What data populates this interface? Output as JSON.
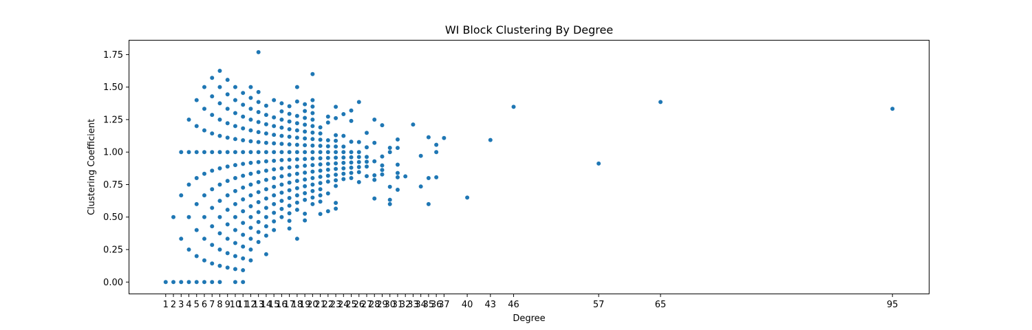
{
  "chart_data": {
    "type": "scatter",
    "title": "WI Block Clustering By Degree",
    "xlabel": "Degree",
    "ylabel": "Clustering Coefficient",
    "xlim": [
      -3.7,
      99.7
    ],
    "ylim": [
      -0.0885,
      1.858
    ],
    "grid": false,
    "color": "#1f77b4",
    "xticks": [
      1,
      2,
      3,
      4,
      5,
      6,
      7,
      8,
      9,
      10,
      11,
      12,
      13,
      14,
      15,
      16,
      17,
      18,
      19,
      20,
      21,
      22,
      23,
      24,
      25,
      26,
      27,
      28,
      29,
      30,
      31,
      32,
      33,
      34,
      35,
      36,
      37,
      40,
      43,
      46,
      57,
      65,
      95
    ],
    "yticks": [
      0.0,
      0.25,
      0.5,
      0.75,
      1.0,
      1.25,
      1.5,
      1.75
    ],
    "ytick_labels": [
      "0.00",
      "0.25",
      "0.50",
      "0.75",
      "1.00",
      "1.25",
      "1.50",
      "1.75"
    ],
    "points": [
      [
        1,
        0.0
      ],
      [
        2,
        0.0
      ],
      [
        2,
        0.5
      ],
      [
        3,
        0.0
      ],
      [
        3,
        0.333
      ],
      [
        3,
        0.667
      ],
      [
        3,
        1.0
      ],
      [
        4,
        0.0
      ],
      [
        4,
        0.25
      ],
      [
        4,
        0.5
      ],
      [
        4,
        0.75
      ],
      [
        4,
        1.0
      ],
      [
        4,
        1.25
      ],
      [
        5,
        0.0
      ],
      [
        5,
        0.2
      ],
      [
        5,
        0.4
      ],
      [
        5,
        0.6
      ],
      [
        5,
        0.8
      ],
      [
        5,
        1.0
      ],
      [
        5,
        1.2
      ],
      [
        5,
        1.4
      ],
      [
        6,
        0.0
      ],
      [
        6,
        0.167
      ],
      [
        6,
        0.333
      ],
      [
        6,
        0.5
      ],
      [
        6,
        0.667
      ],
      [
        6,
        0.833
      ],
      [
        6,
        1.0
      ],
      [
        6,
        1.167
      ],
      [
        6,
        1.333
      ],
      [
        6,
        1.5
      ],
      [
        7,
        0.0
      ],
      [
        7,
        0.143
      ],
      [
        7,
        0.286
      ],
      [
        7,
        0.429
      ],
      [
        7,
        0.571
      ],
      [
        7,
        0.714
      ],
      [
        7,
        0.857
      ],
      [
        7,
        1.0
      ],
      [
        7,
        1.143
      ],
      [
        7,
        1.286
      ],
      [
        7,
        1.429
      ],
      [
        7,
        1.571
      ],
      [
        8,
        0.0
      ],
      [
        8,
        0.125
      ],
      [
        8,
        0.25
      ],
      [
        8,
        0.375
      ],
      [
        8,
        0.5
      ],
      [
        8,
        0.625
      ],
      [
        8,
        0.75
      ],
      [
        8,
        0.875
      ],
      [
        8,
        1.0
      ],
      [
        8,
        1.125
      ],
      [
        8,
        1.25
      ],
      [
        8,
        1.375
      ],
      [
        8,
        1.5
      ],
      [
        8,
        1.625
      ],
      [
        9,
        0.111
      ],
      [
        9,
        0.222
      ],
      [
        9,
        0.333
      ],
      [
        9,
        0.444
      ],
      [
        9,
        0.556
      ],
      [
        9,
        0.667
      ],
      [
        9,
        0.778
      ],
      [
        9,
        0.889
      ],
      [
        9,
        1.0
      ],
      [
        9,
        1.111
      ],
      [
        9,
        1.222
      ],
      [
        9,
        1.333
      ],
      [
        9,
        1.444
      ],
      [
        9,
        1.556
      ],
      [
        10,
        0.0
      ],
      [
        10,
        0.1
      ],
      [
        10,
        0.2
      ],
      [
        10,
        0.3
      ],
      [
        10,
        0.4
      ],
      [
        10,
        0.5
      ],
      [
        10,
        0.6
      ],
      [
        10,
        0.7
      ],
      [
        10,
        0.8
      ],
      [
        10,
        0.9
      ],
      [
        10,
        1.0
      ],
      [
        10,
        1.1
      ],
      [
        10,
        1.2
      ],
      [
        10,
        1.3
      ],
      [
        10,
        1.4
      ],
      [
        10,
        1.5
      ],
      [
        11,
        0.0
      ],
      [
        11,
        0.091
      ],
      [
        11,
        0.182
      ],
      [
        11,
        0.273
      ],
      [
        11,
        0.364
      ],
      [
        11,
        0.455
      ],
      [
        11,
        0.545
      ],
      [
        11,
        0.636
      ],
      [
        11,
        0.727
      ],
      [
        11,
        0.818
      ],
      [
        11,
        0.909
      ],
      [
        11,
        1.0
      ],
      [
        11,
        1.091
      ],
      [
        11,
        1.182
      ],
      [
        11,
        1.273
      ],
      [
        11,
        1.364
      ],
      [
        11,
        1.455
      ],
      [
        12,
        0.167
      ],
      [
        12,
        0.25
      ],
      [
        12,
        0.333
      ],
      [
        12,
        0.417
      ],
      [
        12,
        0.5
      ],
      [
        12,
        0.583
      ],
      [
        12,
        0.667
      ],
      [
        12,
        0.75
      ],
      [
        12,
        0.833
      ],
      [
        12,
        0.917
      ],
      [
        12,
        1.0
      ],
      [
        12,
        1.083
      ],
      [
        12,
        1.167
      ],
      [
        12,
        1.25
      ],
      [
        12,
        1.333
      ],
      [
        12,
        1.417
      ],
      [
        12,
        1.5
      ],
      [
        13,
        0.308
      ],
      [
        13,
        0.385
      ],
      [
        13,
        0.462
      ],
      [
        13,
        0.538
      ],
      [
        13,
        0.615
      ],
      [
        13,
        0.692
      ],
      [
        13,
        0.769
      ],
      [
        13,
        0.846
      ],
      [
        13,
        0.923
      ],
      [
        13,
        1.0
      ],
      [
        13,
        1.077
      ],
      [
        13,
        1.154
      ],
      [
        13,
        1.231
      ],
      [
        13,
        1.308
      ],
      [
        13,
        1.385
      ],
      [
        13,
        1.462
      ],
      [
        13,
        1.769
      ],
      [
        14,
        0.214
      ],
      [
        14,
        0.357
      ],
      [
        14,
        0.429
      ],
      [
        14,
        0.5
      ],
      [
        14,
        0.571
      ],
      [
        14,
        0.643
      ],
      [
        14,
        0.714
      ],
      [
        14,
        0.786
      ],
      [
        14,
        0.857
      ],
      [
        14,
        0.929
      ],
      [
        14,
        1.0
      ],
      [
        14,
        1.071
      ],
      [
        14,
        1.143
      ],
      [
        14,
        1.214
      ],
      [
        14,
        1.286
      ],
      [
        14,
        1.357
      ],
      [
        15,
        0.4
      ],
      [
        15,
        0.467
      ],
      [
        15,
        0.533
      ],
      [
        15,
        0.6
      ],
      [
        15,
        0.667
      ],
      [
        15,
        0.733
      ],
      [
        15,
        0.8
      ],
      [
        15,
        0.867
      ],
      [
        15,
        0.933
      ],
      [
        15,
        1.0
      ],
      [
        15,
        1.067
      ],
      [
        15,
        1.133
      ],
      [
        15,
        1.2
      ],
      [
        15,
        1.267
      ],
      [
        15,
        1.4
      ],
      [
        16,
        0.5
      ],
      [
        16,
        0.563
      ],
      [
        16,
        0.625
      ],
      [
        16,
        0.688
      ],
      [
        16,
        0.75
      ],
      [
        16,
        0.813
      ],
      [
        16,
        0.875
      ],
      [
        16,
        0.938
      ],
      [
        16,
        1.0
      ],
      [
        16,
        1.063
      ],
      [
        16,
        1.125
      ],
      [
        16,
        1.188
      ],
      [
        16,
        1.25
      ],
      [
        16,
        1.313
      ],
      [
        16,
        1.375
      ],
      [
        17,
        0.412
      ],
      [
        17,
        0.471
      ],
      [
        17,
        0.529
      ],
      [
        17,
        0.588
      ],
      [
        17,
        0.647
      ],
      [
        17,
        0.706
      ],
      [
        17,
        0.765
      ],
      [
        17,
        0.824
      ],
      [
        17,
        0.882
      ],
      [
        17,
        0.941
      ],
      [
        17,
        1.0
      ],
      [
        17,
        1.059
      ],
      [
        17,
        1.118
      ],
      [
        17,
        1.176
      ],
      [
        17,
        1.235
      ],
      [
        17,
        1.294
      ],
      [
        17,
        1.353
      ],
      [
        18,
        0.333
      ],
      [
        18,
        0.556
      ],
      [
        18,
        0.611
      ],
      [
        18,
        0.667
      ],
      [
        18,
        0.722
      ],
      [
        18,
        0.778
      ],
      [
        18,
        0.833
      ],
      [
        18,
        0.889
      ],
      [
        18,
        0.944
      ],
      [
        18,
        1.0
      ],
      [
        18,
        1.056
      ],
      [
        18,
        1.111
      ],
      [
        18,
        1.167
      ],
      [
        18,
        1.222
      ],
      [
        18,
        1.278
      ],
      [
        18,
        1.389
      ],
      [
        18,
        1.5
      ],
      [
        19,
        0.474
      ],
      [
        19,
        0.526
      ],
      [
        19,
        0.632
      ],
      [
        19,
        0.684
      ],
      [
        19,
        0.737
      ],
      [
        19,
        0.789
      ],
      [
        19,
        0.842
      ],
      [
        19,
        0.895
      ],
      [
        19,
        0.947
      ],
      [
        19,
        1.0
      ],
      [
        19,
        1.053
      ],
      [
        19,
        1.105
      ],
      [
        19,
        1.158
      ],
      [
        19,
        1.211
      ],
      [
        19,
        1.263
      ],
      [
        19,
        1.316
      ],
      [
        19,
        1.368
      ],
      [
        20,
        0.6
      ],
      [
        20,
        0.65
      ],
      [
        20,
        0.7
      ],
      [
        20,
        0.75
      ],
      [
        20,
        0.8
      ],
      [
        20,
        0.85
      ],
      [
        20,
        0.9
      ],
      [
        20,
        0.95
      ],
      [
        20,
        1.0
      ],
      [
        20,
        1.05
      ],
      [
        20,
        1.1
      ],
      [
        20,
        1.15
      ],
      [
        20,
        1.2
      ],
      [
        20,
        1.25
      ],
      [
        20,
        1.3
      ],
      [
        20,
        1.35
      ],
      [
        20,
        1.4
      ],
      [
        20,
        1.6
      ],
      [
        21,
        0.524
      ],
      [
        21,
        0.619
      ],
      [
        21,
        0.667
      ],
      [
        21,
        0.714
      ],
      [
        21,
        0.762
      ],
      [
        21,
        0.81
      ],
      [
        21,
        0.857
      ],
      [
        21,
        0.905
      ],
      [
        21,
        0.952
      ],
      [
        21,
        1.0
      ],
      [
        21,
        1.048
      ],
      [
        21,
        1.095
      ],
      [
        21,
        1.143
      ],
      [
        21,
        1.19
      ],
      [
        22,
        0.545
      ],
      [
        22,
        0.682
      ],
      [
        22,
        0.773
      ],
      [
        22,
        0.818
      ],
      [
        22,
        0.864
      ],
      [
        22,
        0.909
      ],
      [
        22,
        0.955
      ],
      [
        22,
        1.0
      ],
      [
        22,
        1.045
      ],
      [
        22,
        1.091
      ],
      [
        22,
        1.227
      ],
      [
        22,
        1.273
      ],
      [
        23,
        0.565
      ],
      [
        23,
        0.609
      ],
      [
        23,
        0.739
      ],
      [
        23,
        0.783
      ],
      [
        23,
        0.826
      ],
      [
        23,
        0.87
      ],
      [
        23,
        0.913
      ],
      [
        23,
        0.957
      ],
      [
        23,
        1.0
      ],
      [
        23,
        1.043
      ],
      [
        23,
        1.087
      ],
      [
        23,
        1.13
      ],
      [
        23,
        1.261
      ],
      [
        23,
        1.348
      ],
      [
        24,
        0.792
      ],
      [
        24,
        0.833
      ],
      [
        24,
        0.875
      ],
      [
        24,
        0.917
      ],
      [
        24,
        0.958
      ],
      [
        24,
        1.0
      ],
      [
        24,
        1.042
      ],
      [
        24,
        1.125
      ],
      [
        24,
        1.292
      ],
      [
        25,
        0.8
      ],
      [
        25,
        0.84
      ],
      [
        25,
        0.88
      ],
      [
        25,
        0.92
      ],
      [
        25,
        0.96
      ],
      [
        25,
        1.0
      ],
      [
        25,
        1.08
      ],
      [
        25,
        1.24
      ],
      [
        25,
        1.32
      ],
      [
        26,
        0.769
      ],
      [
        26,
        0.846
      ],
      [
        26,
        0.885
      ],
      [
        26,
        0.923
      ],
      [
        26,
        0.962
      ],
      [
        26,
        1.0
      ],
      [
        26,
        1.077
      ],
      [
        26,
        1.385
      ],
      [
        27,
        0.815
      ],
      [
        27,
        0.889
      ],
      [
        27,
        0.926
      ],
      [
        27,
        0.963
      ],
      [
        27,
        1.037
      ],
      [
        27,
        1.148
      ],
      [
        28,
        0.643
      ],
      [
        28,
        0.786
      ],
      [
        28,
        0.821
      ],
      [
        28,
        0.929
      ],
      [
        28,
        1.071
      ],
      [
        28,
        1.25
      ],
      [
        29,
        0.828
      ],
      [
        29,
        0.862
      ],
      [
        29,
        0.897
      ],
      [
        29,
        0.966
      ],
      [
        29,
        1.207
      ],
      [
        30,
        0.6
      ],
      [
        30,
        0.633
      ],
      [
        30,
        0.733
      ],
      [
        30,
        1.0
      ],
      [
        30,
        1.033
      ],
      [
        31,
        0.71
      ],
      [
        31,
        0.806
      ],
      [
        31,
        0.839
      ],
      [
        31,
        0.903
      ],
      [
        31,
        1.032
      ],
      [
        31,
        1.097
      ],
      [
        32,
        0.813
      ],
      [
        33,
        1.212
      ],
      [
        34,
        0.735
      ],
      [
        34,
        0.971
      ],
      [
        35,
        0.6
      ],
      [
        35,
        0.8
      ],
      [
        35,
        1.114
      ],
      [
        36,
        0.806
      ],
      [
        36,
        1.0
      ],
      [
        36,
        1.056
      ],
      [
        37,
        1.108
      ],
      [
        40,
        0.65
      ],
      [
        43,
        1.093
      ],
      [
        46,
        1.348
      ],
      [
        57,
        0.912
      ],
      [
        65,
        1.385
      ],
      [
        95,
        1.333
      ]
    ]
  }
}
